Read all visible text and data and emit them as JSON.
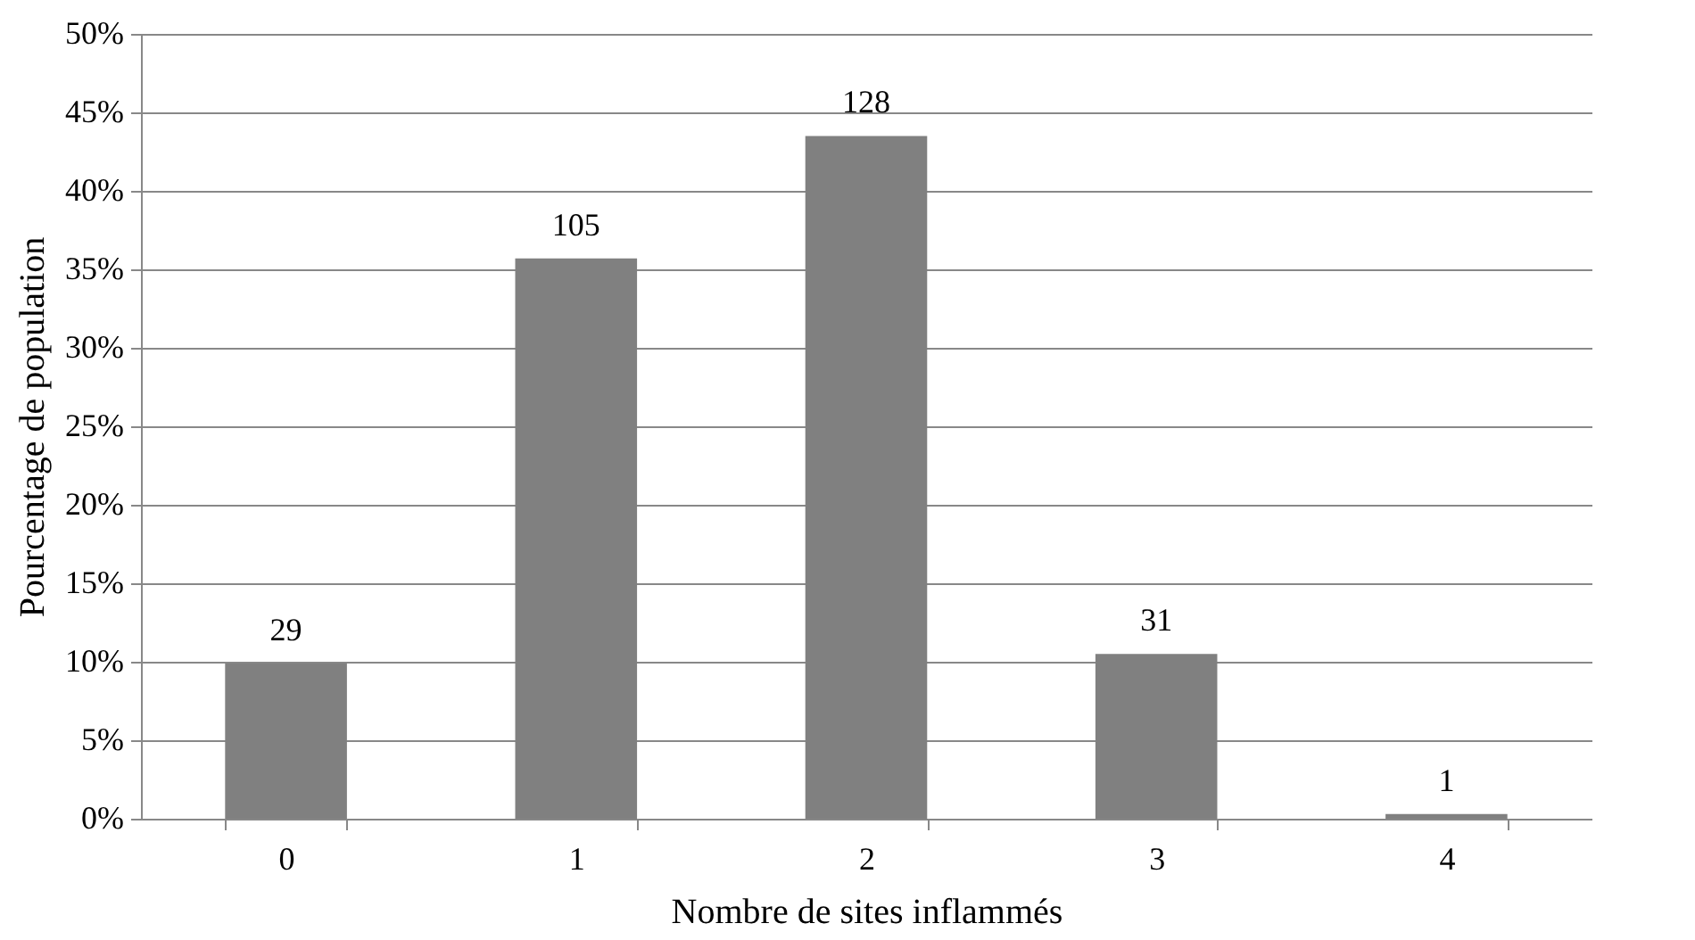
{
  "chart_data": {
    "type": "bar",
    "xlabel": "Nombre de sites inflammés",
    "ylabel": "Pourcentage de population",
    "categories": [
      "0",
      "1",
      "2",
      "3",
      "4"
    ],
    "values": [
      9.9,
      35.7,
      43.5,
      10.5,
      0.3
    ],
    "annotations": [
      {
        "text": "29",
        "x": "0",
        "y": 9.9
      },
      {
        "text": "105",
        "x": "1",
        "y": 35.7
      },
      {
        "text": "128",
        "x": "2",
        "y": 43.5
      },
      {
        "text": "31",
        "x": "3",
        "y": 10.5
      },
      {
        "text": "1",
        "x": "4",
        "y": 0.3
      }
    ],
    "color": "#808080",
    "ylim": [
      0,
      50
    ],
    "yticks": [
      {
        "value": 0,
        "label": "0%"
      },
      {
        "value": 5,
        "label": "5%"
      },
      {
        "value": 10,
        "label": "10%"
      },
      {
        "value": 15,
        "label": "15%"
      },
      {
        "value": 20,
        "label": "20%"
      },
      {
        "value": 25,
        "label": "25%"
      },
      {
        "value": 30,
        "label": "30%"
      },
      {
        "value": 35,
        "label": "35%"
      },
      {
        "value": 40,
        "label": "40%"
      },
      {
        "value": 45,
        "label": "45%"
      },
      {
        "value": 50,
        "label": "50%"
      }
    ],
    "grid": "y"
  }
}
